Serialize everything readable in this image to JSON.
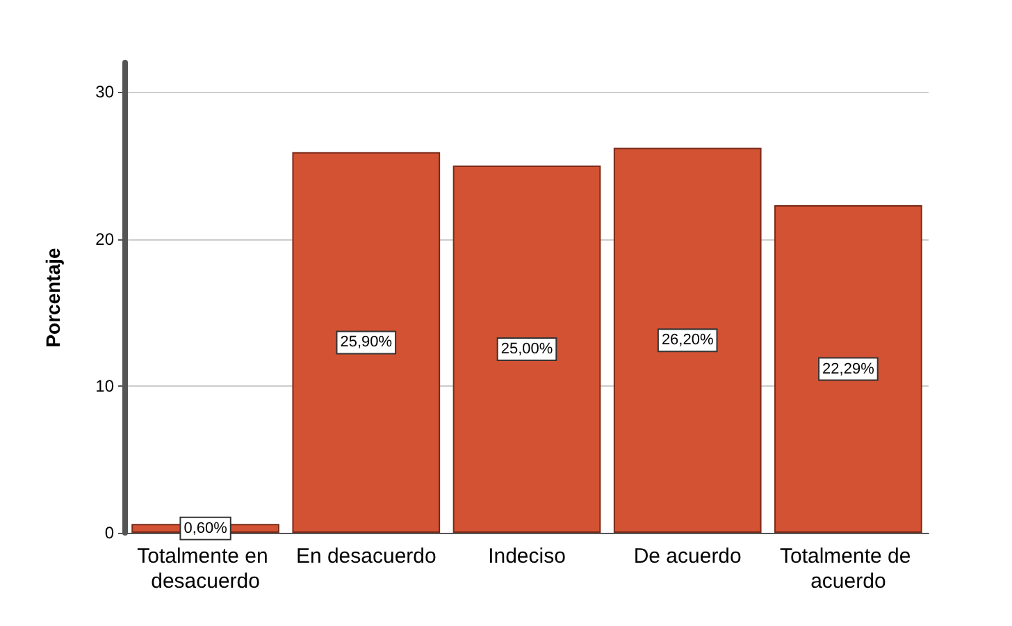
{
  "chart_data": {
    "type": "bar",
    "ylabel": "Porcentaje",
    "categories": [
      "Totalmente en desacuerdo",
      "En desacuerdo",
      "Indeciso",
      "De acuerdo",
      "Totalmente de acuerdo"
    ],
    "values": [
      0.6,
      25.9,
      25.0,
      26.2,
      22.29
    ],
    "value_labels": [
      "0,60%",
      "25,90%",
      "25,00%",
      "26,20%",
      "22,29%"
    ],
    "color": "#d35234",
    "ylim": [
      0,
      32
    ],
    "yticks": [
      0,
      10,
      20,
      30
    ],
    "grid": "y"
  }
}
